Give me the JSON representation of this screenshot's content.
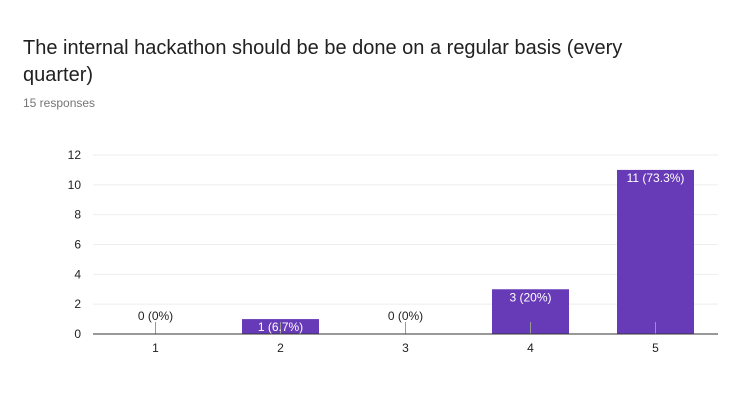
{
  "question": {
    "title": "The internal hackathon should be be done on a regular basis (every quarter)",
    "responses": "15 responses"
  },
  "colors": {
    "bar": "#673ab7",
    "grid": "#eeeeee",
    "axis": "#333333",
    "label_inside": "#ffffff",
    "label_outside": "#222222"
  },
  "chart_data": {
    "type": "bar",
    "categories": [
      "1",
      "2",
      "3",
      "4",
      "5"
    ],
    "values": [
      0,
      1,
      0,
      3,
      11
    ],
    "data_labels": [
      "0 (0%)",
      "1 (6.7%)",
      "0 (0%)",
      "3 (20%)",
      "11 (73.3%)"
    ],
    "y_ticks": [
      "0",
      "2",
      "4",
      "6",
      "8",
      "10",
      "12"
    ],
    "ylim": [
      0,
      12
    ],
    "grid": true,
    "xlabel": "",
    "ylabel": ""
  }
}
